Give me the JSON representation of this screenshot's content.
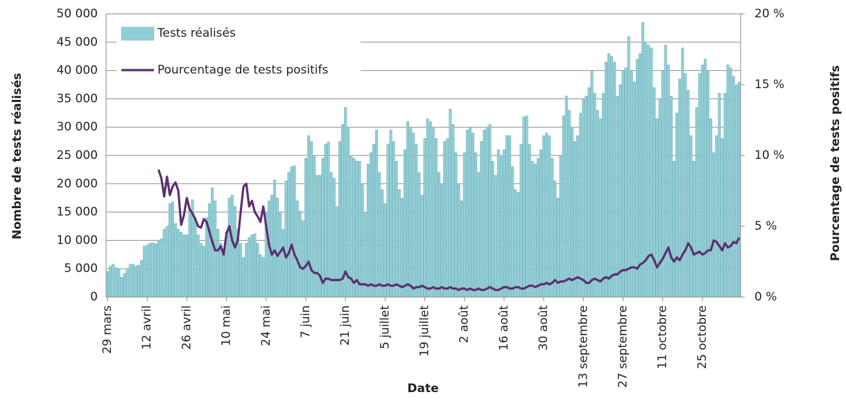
{
  "chart_data": {
    "type": "bar",
    "x_label": "Date",
    "y_label": "Nombre de tests réalisés",
    "y2_label": "Pourcentage de tests positifs",
    "categories": [
      "29 mars",
      null,
      null,
      null,
      null,
      null,
      null,
      null,
      null,
      null,
      null,
      null,
      null,
      null,
      "12 avril",
      null,
      null,
      null,
      null,
      null,
      null,
      null,
      null,
      null,
      null,
      null,
      null,
      null,
      "26 avril",
      null,
      null,
      null,
      null,
      null,
      null,
      null,
      null,
      null,
      null,
      null,
      null,
      null,
      "10 mai",
      null,
      null,
      null,
      null,
      null,
      null,
      null,
      null,
      null,
      null,
      null,
      null,
      null,
      "24 mai",
      null,
      null,
      null,
      null,
      null,
      null,
      null,
      null,
      null,
      null,
      null,
      null,
      null,
      "7 juin",
      null,
      null,
      null,
      null,
      null,
      null,
      null,
      null,
      null,
      null,
      null,
      null,
      null,
      "21 juin",
      null,
      null,
      null,
      null,
      null,
      null,
      null,
      null,
      null,
      null,
      null,
      null,
      null,
      "5 juillet",
      null,
      null,
      null,
      null,
      null,
      null,
      null,
      null,
      null,
      null,
      null,
      null,
      null,
      "19 juillet",
      null,
      null,
      null,
      null,
      null,
      null,
      null,
      null,
      null,
      null,
      null,
      null,
      null,
      "2 août",
      null,
      null,
      null,
      null,
      null,
      null,
      null,
      null,
      null,
      null,
      null,
      null,
      null,
      "16 août",
      null,
      null,
      null,
      null,
      null,
      null,
      null,
      null,
      null,
      null,
      null,
      null,
      null,
      "30 août",
      null,
      null,
      null,
      null,
      null,
      null,
      null,
      null,
      null,
      null,
      null,
      null,
      null,
      "13 septembre",
      null,
      null,
      null,
      null,
      null,
      null,
      null,
      null,
      null,
      null,
      null,
      null,
      null,
      "27 septembre",
      null,
      null,
      null,
      null,
      null,
      null,
      null,
      null,
      null,
      null,
      null,
      null,
      null,
      "11 octobre",
      null,
      null,
      null,
      null,
      null,
      null,
      null,
      null,
      null,
      null,
      null,
      null,
      null,
      "25 octobre",
      null,
      null,
      null,
      null,
      null,
      null,
      null,
      null,
      null,
      null,
      null,
      null,
      null
    ],
    "series": [
      {
        "name": "Tests réalisés",
        "type": "bar",
        "color": "#8fd0d8",
        "values": [
          4500,
          5500,
          5800,
          5200,
          5000,
          3500,
          4200,
          5000,
          5800,
          5800,
          5500,
          5600,
          6500,
          9000,
          9200,
          9500,
          9600,
          9400,
          10000,
          10300,
          12000,
          12500,
          16500,
          16800,
          13000,
          12000,
          11500,
          11000,
          11000,
          15500,
          17200,
          14000,
          11000,
          9500,
          9000,
          14000,
          16500,
          19300,
          17000,
          12000,
          9500,
          7500,
          11500,
          17500,
          18000,
          16000,
          12000,
          9500,
          7000,
          9500,
          10500,
          11000,
          11200,
          9500,
          7500,
          7000,
          15000,
          17000,
          18000,
          20700,
          17500,
          15000,
          12000,
          20500,
          22000,
          23000,
          23200,
          17000,
          15200,
          13500,
          24500,
          28500,
          27500,
          25000,
          21500,
          21500,
          24500,
          27000,
          27400,
          22000,
          21000,
          16000,
          27500,
          30500,
          33500,
          30000,
          25000,
          24500,
          24000,
          24000,
          20000,
          15000,
          23500,
          25500,
          27000,
          29500,
          22000,
          19000,
          16500,
          27000,
          29500,
          27500,
          24000,
          19000,
          17500,
          26000,
          31000,
          30000,
          29000,
          27000,
          22000,
          18000,
          28000,
          31500,
          31000,
          30000,
          28000,
          22000,
          20000,
          27500,
          28000,
          33200,
          30500,
          25500,
          20000,
          17000,
          25500,
          29500,
          30000,
          29000,
          25500,
          22000,
          27500,
          29500,
          30000,
          30500,
          24000,
          21500,
          26000,
          25000,
          26000,
          28500,
          28500,
          23000,
          19000,
          18500,
          27000,
          31800,
          32000,
          27000,
          24000,
          23500,
          24500,
          26000,
          28500,
          29000,
          28500,
          24500,
          20500,
          17500,
          25000,
          32000,
          35500,
          33000,
          30000,
          27500,
          28500,
          32500,
          35000,
          35500,
          37000,
          40000,
          36000,
          33000,
          31500,
          36000,
          41500,
          43000,
          42500,
          41500,
          35500,
          37500,
          40000,
          40500,
          46000,
          40000,
          38000,
          42000,
          43000,
          48500,
          45000,
          44500,
          44000,
          37000,
          31500,
          35000,
          40000,
          44500,
          41000,
          35500,
          24000,
          32500,
          38500,
          44000,
          39500,
          36500,
          28500,
          24000,
          33500,
          39500,
          41000,
          42000,
          40000,
          31500,
          25500,
          28500,
          36000,
          28000,
          36000,
          41000,
          40500,
          39000,
          37500,
          38000
        ]
      },
      {
        "name": "Pourcentage de tests positifs",
        "type": "line",
        "axis": "y2",
        "color": "#5c2f6f",
        "values": [
          null,
          null,
          null,
          null,
          null,
          null,
          null,
          null,
          null,
          null,
          null,
          null,
          null,
          null,
          null,
          null,
          null,
          null,
          9.0,
          8.4,
          7.1,
          8.5,
          7.2,
          7.8,
          8.1,
          7.5,
          5.1,
          5.8,
          7.0,
          6.2,
          5.9,
          5.5,
          5.0,
          4.9,
          5.5,
          5.3,
          4.6,
          3.9,
          3.3,
          3.3,
          3.6,
          3.0,
          4.5,
          5.0,
          4.0,
          3.5,
          4.0,
          6.0,
          7.8,
          8.0,
          6.4,
          6.8,
          6.0,
          5.7,
          5.3,
          6.4,
          5.0,
          3.7,
          3.0,
          3.3,
          2.9,
          3.2,
          3.5,
          2.8,
          3.1,
          3.7,
          3.0,
          2.6,
          2.1,
          2.0,
          2.2,
          2.5,
          1.9,
          1.7,
          1.7,
          1.5,
          1.0,
          1.3,
          1.3,
          1.2,
          1.2,
          1.2,
          1.2,
          1.3,
          1.8,
          1.4,
          1.3,
          1.0,
          1.2,
          0.9,
          0.9,
          0.9,
          0.8,
          0.9,
          0.8,
          0.8,
          0.9,
          0.8,
          0.8,
          0.9,
          0.8,
          0.8,
          0.9,
          0.8,
          0.7,
          0.8,
          0.9,
          0.8,
          0.6,
          0.7,
          0.7,
          0.8,
          0.7,
          0.6,
          0.6,
          0.7,
          0.6,
          0.6,
          0.7,
          0.6,
          0.6,
          0.7,
          0.6,
          0.6,
          0.5,
          0.6,
          0.6,
          0.5,
          0.6,
          0.5,
          0.5,
          0.6,
          0.5,
          0.5,
          0.6,
          0.7,
          0.6,
          0.5,
          0.5,
          0.6,
          0.7,
          0.7,
          0.6,
          0.6,
          0.7,
          0.7,
          0.6,
          0.6,
          0.7,
          0.8,
          0.8,
          0.7,
          0.8,
          0.9,
          0.9,
          1.0,
          0.9,
          1.0,
          1.2,
          1.0,
          1.1,
          1.1,
          1.2,
          1.3,
          1.2,
          1.3,
          1.4,
          1.3,
          1.2,
          1.0,
          1.0,
          1.2,
          1.3,
          1.2,
          1.1,
          1.3,
          1.4,
          1.3,
          1.5,
          1.6,
          1.6,
          1.8,
          1.9,
          1.9,
          2.0,
          2.1,
          2.1,
          2.0,
          2.3,
          2.4,
          2.6,
          2.9,
          3.0,
          2.6,
          2.1,
          2.4,
          2.7,
          3.1,
          3.5,
          2.8,
          2.5,
          2.8,
          2.6,
          3.0,
          3.3,
          3.8,
          3.5,
          3.0,
          3.1,
          3.2,
          3.0,
          3.1,
          3.3,
          3.3,
          4.0,
          3.9,
          3.6,
          3.3,
          3.8,
          3.5,
          3.6,
          3.9,
          3.8,
          4.2
        ]
      }
    ],
    "ylim": [
      0,
      50000
    ],
    "yticks": [
      0,
      {
        "value": 5000,
        "label": "5 000"
      },
      {
        "value": 10000,
        "label": "10 000"
      },
      {
        "value": 15000,
        "label": "15 000"
      },
      {
        "value": 20000,
        "label": "20 000"
      },
      {
        "value": 25000,
        "label": "25 000"
      },
      {
        "value": 30000,
        "label": "30 000"
      },
      {
        "value": 35000,
        "label": "35 000"
      },
      {
        "value": 40000,
        "label": "40 000"
      },
      {
        "value": 45000,
        "label": "45 000"
      },
      {
        "value": 50000,
        "label": "50 000"
      }
    ],
    "y2lim": [
      0,
      20
    ],
    "y2ticks": [
      {
        "value": 0,
        "label": "0 %"
      },
      {
        "value": 5,
        "label": "5 %"
      },
      {
        "value": 10,
        "label": "10 %"
      },
      {
        "value": 15,
        "label": "15 %"
      },
      {
        "value": 20,
        "label": "20 %"
      }
    ],
    "grid": true,
    "legend": "top-left"
  }
}
